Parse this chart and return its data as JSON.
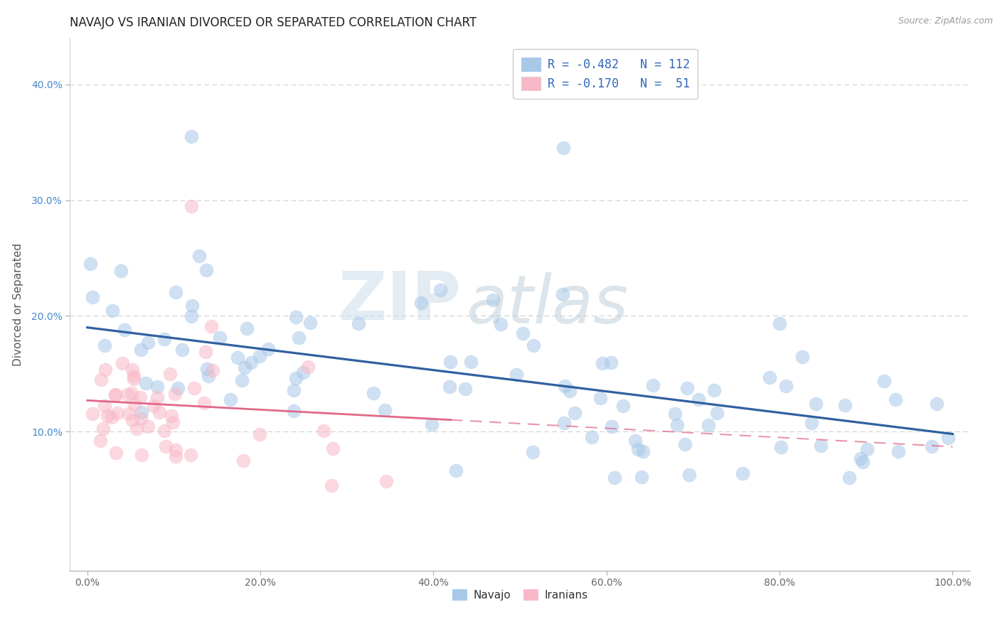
{
  "title": "NAVAJO VS IRANIAN DIVORCED OR SEPARATED CORRELATION CHART",
  "source_text": "Source: ZipAtlas.com",
  "ylabel_text": "Divorced or Separated",
  "navajo_R": -0.482,
  "navajo_N": 112,
  "iranian_R": -0.17,
  "iranian_N": 51,
  "xlim": [
    -0.02,
    1.02
  ],
  "ylim": [
    -0.02,
    0.44
  ],
  "xtick_vals": [
    0.0,
    0.2,
    0.4,
    0.6,
    0.8,
    1.0
  ],
  "ytick_vals": [
    0.1,
    0.2,
    0.3,
    0.4
  ],
  "navajo_color": "#a8c8e8",
  "navajo_line_color": "#3060a0",
  "iranian_color": "#f8b8c8",
  "iranian_line_color": "#e06888",
  "watermark_zip_color": "#c8d8e8",
  "watermark_atlas_color": "#b0c8e0",
  "grid_color": "#cccccc",
  "background_color": "#ffffff",
  "title_fontsize": 12,
  "tick_fontsize": 10,
  "legend_fontsize": 12,
  "axis_label_fontsize": 11,
  "ytick_color": "#4488cc",
  "xtick_color": "#666666",
  "legend_text_color": "#3366bb",
  "legend_label_color": "#333333",
  "source_color": "#999999",
  "ylabel_color": "#555555"
}
